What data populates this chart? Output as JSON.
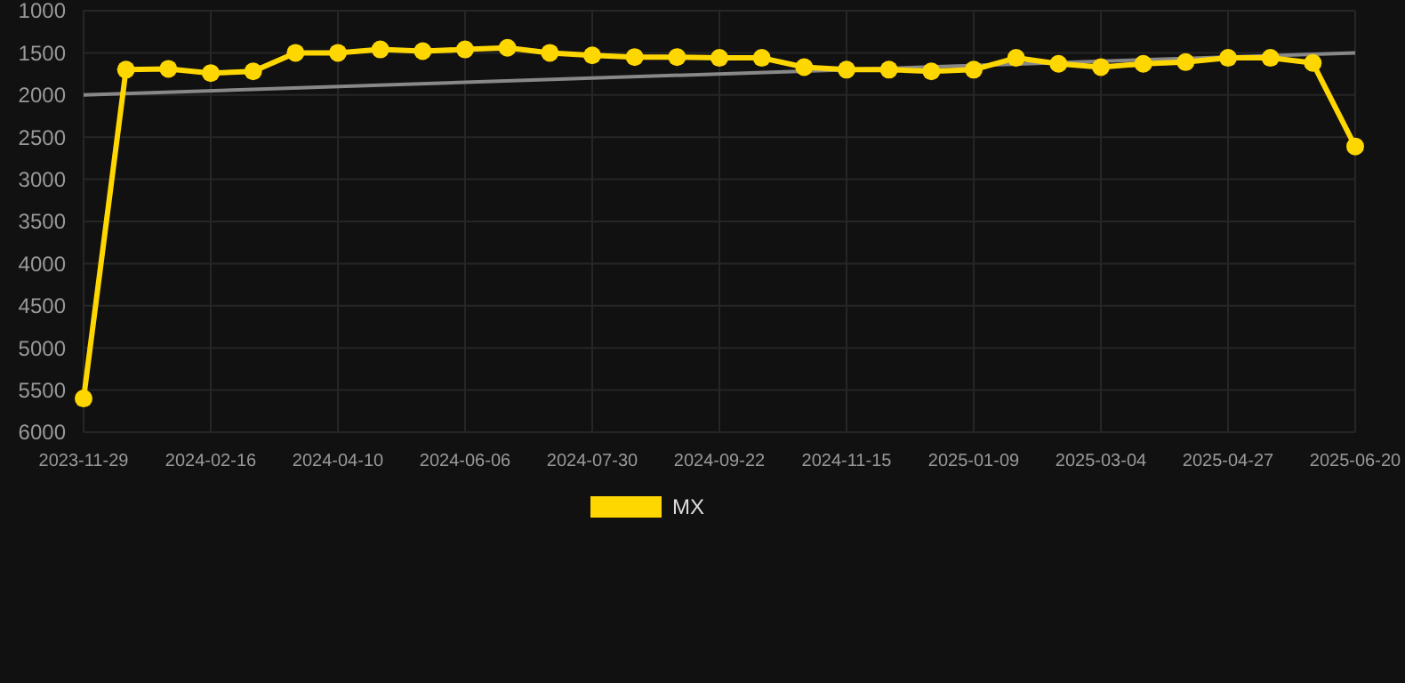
{
  "chart_data": {
    "type": "line",
    "categories": [
      "2023-11-29",
      null,
      null,
      "2024-02-16",
      null,
      null,
      "2024-04-10",
      null,
      null,
      "2024-06-06",
      null,
      null,
      "2024-07-30",
      null,
      null,
      "2024-09-22",
      null,
      null,
      "2024-11-15",
      null,
      null,
      "2025-01-09",
      null,
      null,
      "2025-03-04",
      null,
      null,
      "2025-04-27",
      null,
      null,
      "2025-06-20"
    ],
    "series": [
      {
        "name": "MX",
        "color": "#ffd700",
        "values": [
          5600,
          1700,
          1690,
          1740,
          1720,
          1500,
          1500,
          1460,
          1480,
          1460,
          1440,
          1500,
          1530,
          1550,
          1550,
          1560,
          1560,
          1670,
          1700,
          1700,
          1720,
          1700,
          1560,
          1630,
          1670,
          1630,
          1610,
          1560,
          1560,
          1620,
          2610
        ]
      },
      {
        "type": "line",
        "color": "#888888",
        "values": [
          2000,
          null,
          null,
          null,
          null,
          null,
          null,
          null,
          null,
          null,
          null,
          null,
          null,
          null,
          null,
          null,
          null,
          null,
          null,
          null,
          null,
          null,
          null,
          null,
          null,
          null,
          null,
          null,
          null,
          null,
          1500
        ],
        "marker": "none"
      }
    ],
    "ylim": [
      6000,
      1000
    ],
    "yticks": [
      1000,
      1500,
      2000,
      2500,
      3000,
      3500,
      4000,
      4500,
      5000,
      5500,
      6000
    ],
    "grid": true,
    "legend": "bottom",
    "marker": "circle"
  }
}
